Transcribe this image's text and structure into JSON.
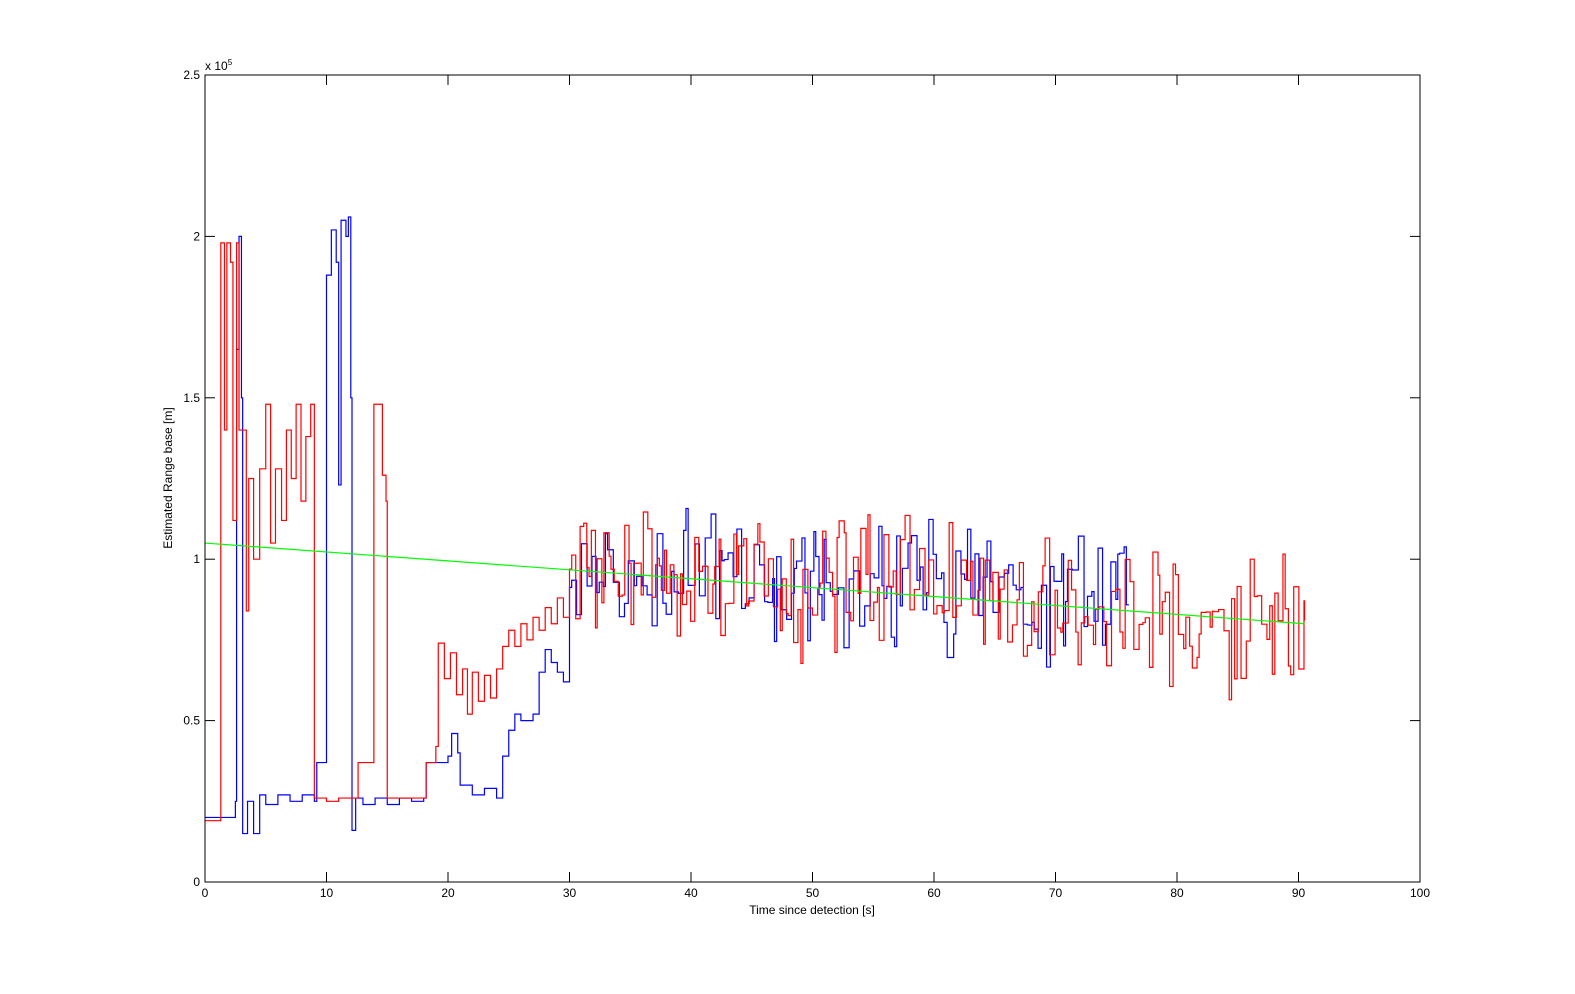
{
  "chart_data": {
    "type": "line",
    "title": "",
    "xlabel": "Time since detection [s]",
    "ylabel": "Estimated Range base [m]",
    "xlim": [
      0,
      100
    ],
    "ylim": [
      0,
      250000
    ],
    "y_exponent_label": "x 10",
    "y_exponent_power": "5",
    "grid": false,
    "legend": "none",
    "x_ticks": [
      0,
      10,
      20,
      30,
      40,
      50,
      60,
      70,
      80,
      90,
      100
    ],
    "x_tick_labels": [
      "0",
      "10",
      "20",
      "30",
      "40",
      "50",
      "60",
      "70",
      "80",
      "90",
      "100"
    ],
    "y_ticks": [
      0,
      50000,
      100000,
      150000,
      200000,
      250000
    ],
    "y_tick_labels": [
      "0",
      "0.5",
      "1",
      "1.5",
      "2",
      "2.5"
    ],
    "series": [
      {
        "color": "#0000ff",
        "style": "step",
        "noise_from": 30,
        "noise_to": 76,
        "noise_center_start": 96000,
        "noise_center_end": 86000,
        "noise_amplitude": 15000,
        "noise_period": 0.5,
        "points": [
          [
            0,
            20000
          ],
          [
            2.5,
            25000
          ],
          [
            2.6,
            165000
          ],
          [
            2.8,
            200000
          ],
          [
            3.0,
            150000
          ],
          [
            3.1,
            15000
          ],
          [
            3.5,
            25000
          ],
          [
            4,
            15000
          ],
          [
            4.5,
            27000
          ],
          [
            5,
            24000
          ],
          [
            6,
            27000
          ],
          [
            7,
            25000
          ],
          [
            8,
            27000
          ],
          [
            9.0,
            25000
          ],
          [
            9.2,
            37000
          ],
          [
            9.8,
            37000
          ],
          [
            10.0,
            188000
          ],
          [
            10.4,
            202000
          ],
          [
            10.8,
            192000
          ],
          [
            11.0,
            123000
          ],
          [
            11.2,
            205000
          ],
          [
            11.6,
            200000
          ],
          [
            11.8,
            206000
          ],
          [
            12.0,
            150000
          ],
          [
            12.1,
            16000
          ],
          [
            12.4,
            26000
          ],
          [
            13,
            24000
          ],
          [
            14,
            26000
          ],
          [
            15,
            24000
          ],
          [
            16,
            26000
          ],
          [
            17,
            25000
          ],
          [
            18,
            26000
          ],
          [
            18.2,
            37000
          ],
          [
            19,
            37000
          ],
          [
            20,
            39000
          ],
          [
            20.3,
            46000
          ],
          [
            20.8,
            40000
          ],
          [
            21,
            30000
          ],
          [
            22,
            27000
          ],
          [
            23,
            29000
          ],
          [
            24,
            26000
          ],
          [
            24.5,
            39000
          ],
          [
            25,
            47000
          ],
          [
            25.5,
            52000
          ],
          [
            26,
            50000
          ],
          [
            27,
            52000
          ],
          [
            27.5,
            65000
          ],
          [
            28,
            72000
          ],
          [
            28.5,
            68000
          ],
          [
            29,
            65000
          ],
          [
            29.5,
            62000
          ],
          [
            30,
            72000
          ]
        ]
      },
      {
        "color": "#ff0000",
        "style": "step",
        "noise_from": 30,
        "noise_to": 90.5,
        "noise_center_start": 97000,
        "noise_center_end": 81000,
        "noise_amplitude": 17000,
        "noise_period": 0.45,
        "points": [
          [
            0,
            19000
          ],
          [
            1.2,
            19000
          ],
          [
            1.3,
            198000
          ],
          [
            1.6,
            140000
          ],
          [
            1.8,
            198000
          ],
          [
            2.1,
            192000
          ],
          [
            2.3,
            112000
          ],
          [
            2.6,
            198000
          ],
          [
            2.8,
            140000
          ],
          [
            3.1,
            140000
          ],
          [
            3.4,
            84000
          ],
          [
            3.6,
            125000
          ],
          [
            4.0,
            100000
          ],
          [
            4.5,
            128000
          ],
          [
            5.0,
            148000
          ],
          [
            5.4,
            105000
          ],
          [
            5.8,
            128000
          ],
          [
            6.3,
            112000
          ],
          [
            6.7,
            140000
          ],
          [
            7.1,
            125000
          ],
          [
            7.5,
            148000
          ],
          [
            7.9,
            118000
          ],
          [
            8.3,
            138000
          ],
          [
            8.7,
            148000
          ],
          [
            9.0,
            26000
          ],
          [
            9.5,
            26000
          ],
          [
            10,
            25000
          ],
          [
            11,
            26000
          ],
          [
            12,
            26000
          ],
          [
            12.6,
            37000
          ],
          [
            13.8,
            37000
          ],
          [
            13.9,
            148000
          ],
          [
            14.4,
            148000
          ],
          [
            14.6,
            126000
          ],
          [
            14.9,
            118000
          ],
          [
            15.0,
            26000
          ],
          [
            16,
            26000
          ],
          [
            17,
            26000
          ],
          [
            18,
            26000
          ],
          [
            18.2,
            37000
          ],
          [
            19,
            42000
          ],
          [
            19.2,
            74000
          ],
          [
            19.7,
            63000
          ],
          [
            20.2,
            71000
          ],
          [
            20.7,
            58000
          ],
          [
            21.2,
            66000
          ],
          [
            21.6,
            52000
          ],
          [
            22,
            65000
          ],
          [
            22.5,
            56000
          ],
          [
            23,
            64000
          ],
          [
            23.5,
            57000
          ],
          [
            24,
            66000
          ],
          [
            24.5,
            73000
          ],
          [
            25,
            78000
          ],
          [
            25.5,
            73000
          ],
          [
            26,
            80000
          ],
          [
            26.5,
            75000
          ],
          [
            27,
            82000
          ],
          [
            27.5,
            78000
          ],
          [
            28,
            85000
          ],
          [
            28.5,
            80000
          ],
          [
            29,
            88000
          ],
          [
            29.5,
            82000
          ],
          [
            30,
            95000
          ]
        ]
      },
      {
        "color": "#00ff00",
        "style": "line",
        "points": [
          [
            0,
            105000
          ],
          [
            90.5,
            80000
          ]
        ]
      }
    ]
  }
}
